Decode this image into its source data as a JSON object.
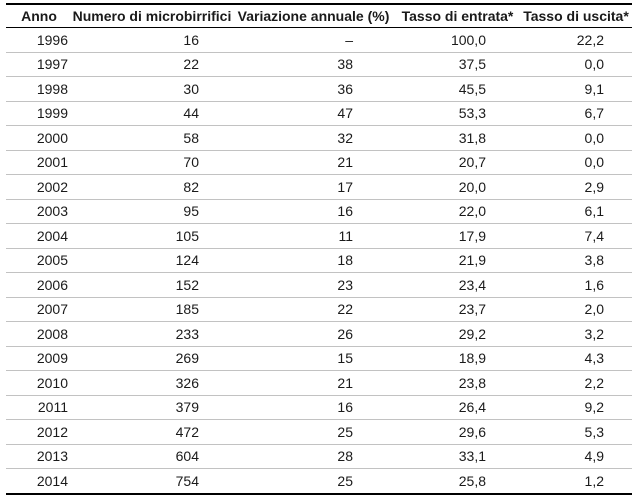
{
  "table": {
    "headers": [
      "Anno",
      "Numero di microbirrifici",
      "Variazione annuale (%)",
      "Tasso di entrata*",
      "Tasso di uscita*"
    ],
    "rows": [
      [
        "1996",
        "16",
        "–",
        "100,0",
        "22,2"
      ],
      [
        "1997",
        "22",
        "38",
        "37,5",
        "0,0"
      ],
      [
        "1998",
        "30",
        "36",
        "45,5",
        "9,1"
      ],
      [
        "1999",
        "44",
        "47",
        "53,3",
        "6,7"
      ],
      [
        "2000",
        "58",
        "32",
        "31,8",
        "0,0"
      ],
      [
        "2001",
        "70",
        "21",
        "20,7",
        "0,0"
      ],
      [
        "2002",
        "82",
        "17",
        "20,0",
        "2,9"
      ],
      [
        "2003",
        "95",
        "16",
        "22,0",
        "6,1"
      ],
      [
        "2004",
        "105",
        "11",
        "17,9",
        "7,4"
      ],
      [
        "2005",
        "124",
        "18",
        "21,9",
        "3,8"
      ],
      [
        "2006",
        "152",
        "23",
        "23,4",
        "1,6"
      ],
      [
        "2007",
        "185",
        "22",
        "23,7",
        "2,0"
      ],
      [
        "2008",
        "233",
        "26",
        "29,2",
        "3,2"
      ],
      [
        "2009",
        "269",
        "15",
        "18,9",
        "4,3"
      ],
      [
        "2010",
        "326",
        "21",
        "23,8",
        "2,2"
      ],
      [
        "2011",
        "379",
        "16",
        "26,4",
        "9,2"
      ],
      [
        "2012",
        "472",
        "25",
        "29,6",
        "5,3"
      ],
      [
        "2013",
        "604",
        "28",
        "33,1",
        "4,9"
      ],
      [
        "2014",
        "754",
        "25",
        "25,8",
        "1,2"
      ]
    ]
  },
  "chart_data": {
    "type": "table",
    "columns": [
      "Anno",
      "Numero di microbirrifici",
      "Variazione annuale (%)",
      "Tasso di entrata*",
      "Tasso di uscita*"
    ],
    "x": [
      1996,
      1997,
      1998,
      1999,
      2000,
      2001,
      2002,
      2003,
      2004,
      2005,
      2006,
      2007,
      2008,
      2009,
      2010,
      2011,
      2012,
      2013,
      2014
    ],
    "series": [
      {
        "name": "Numero di microbirrifici",
        "values": [
          16,
          22,
          30,
          44,
          58,
          70,
          82,
          95,
          105,
          124,
          152,
          185,
          233,
          269,
          326,
          379,
          472,
          604,
          754
        ]
      },
      {
        "name": "Variazione annuale (%)",
        "values": [
          null,
          38,
          36,
          47,
          32,
          21,
          17,
          16,
          11,
          18,
          23,
          22,
          26,
          15,
          21,
          16,
          25,
          28,
          25
        ]
      },
      {
        "name": "Tasso di entrata*",
        "values": [
          100.0,
          37.5,
          45.5,
          53.3,
          31.8,
          20.7,
          20.0,
          22.0,
          17.9,
          21.9,
          23.4,
          23.7,
          29.2,
          18.9,
          23.8,
          26.4,
          29.6,
          33.1,
          25.8
        ]
      },
      {
        "name": "Tasso di uscita*",
        "values": [
          22.2,
          0.0,
          9.1,
          6.7,
          0.0,
          0.0,
          2.9,
          6.1,
          7.4,
          3.8,
          1.6,
          2.0,
          3.2,
          4.3,
          2.2,
          9.2,
          5.3,
          4.9,
          1.2
        ]
      }
    ]
  },
  "colors": {
    "border_dark": "#000000",
    "row_divider": "#c2c2c2",
    "text": "#1a1a1a",
    "background": "#ffffff"
  }
}
